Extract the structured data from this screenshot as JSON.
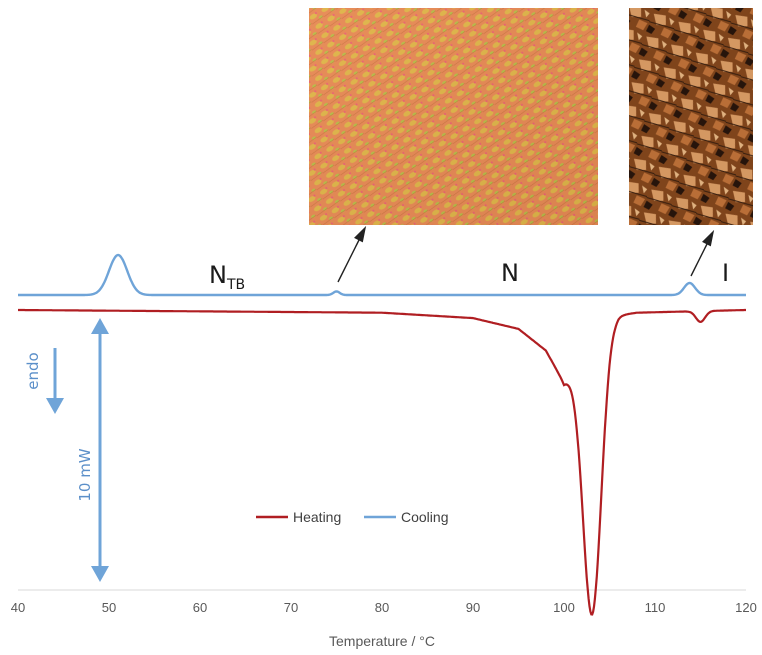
{
  "chart_data": {
    "type": "line",
    "xlabel": "Temperature / °C",
    "ylabel": "",
    "xlim": [
      40,
      120
    ],
    "x_ticks": [
      "40",
      "50",
      "60",
      "70",
      "80",
      "90",
      "100",
      "110",
      "120"
    ],
    "grid": false,
    "legend": {
      "placement": "bottom-center",
      "entries": [
        "Heating",
        "Cooling"
      ]
    },
    "series": [
      {
        "name": "Heating",
        "color": "#b01e22",
        "peaks": [
          {
            "x": 103.1,
            "depth": 1.0,
            "width": 1.0
          },
          {
            "x": 115.0,
            "depth": 0.04,
            "width": 0.5
          }
        ],
        "baseline": [
          [
            40,
            0.0
          ],
          [
            80,
            -0.01
          ],
          [
            90,
            -0.03
          ],
          [
            95,
            -0.07
          ],
          [
            98,
            -0.15
          ],
          [
            100,
            -0.27
          ],
          [
            105,
            -0.04
          ],
          [
            106,
            -0.02
          ],
          [
            108,
            -0.01
          ],
          [
            120,
            0.0
          ]
        ]
      },
      {
        "name": "Cooling",
        "color": "#6fa4d8",
        "peaks": [
          {
            "x": 51.0,
            "height": 1.0,
            "width": 1.0
          },
          {
            "x": 75.0,
            "height": 0.09,
            "width": 0.35
          },
          {
            "x": 113.8,
            "height": 0.3,
            "width": 0.6
          }
        ]
      }
    ],
    "phase_labels": [
      {
        "text": "N",
        "subscript": "TB",
        "x": 62
      },
      {
        "text": "N",
        "subscript": "",
        "x": 94
      },
      {
        "text": "I",
        "subscript": "",
        "x": 118
      }
    ],
    "annotations": {
      "endo_label": "endo",
      "scale_bar_label": "10 mW"
    }
  }
}
